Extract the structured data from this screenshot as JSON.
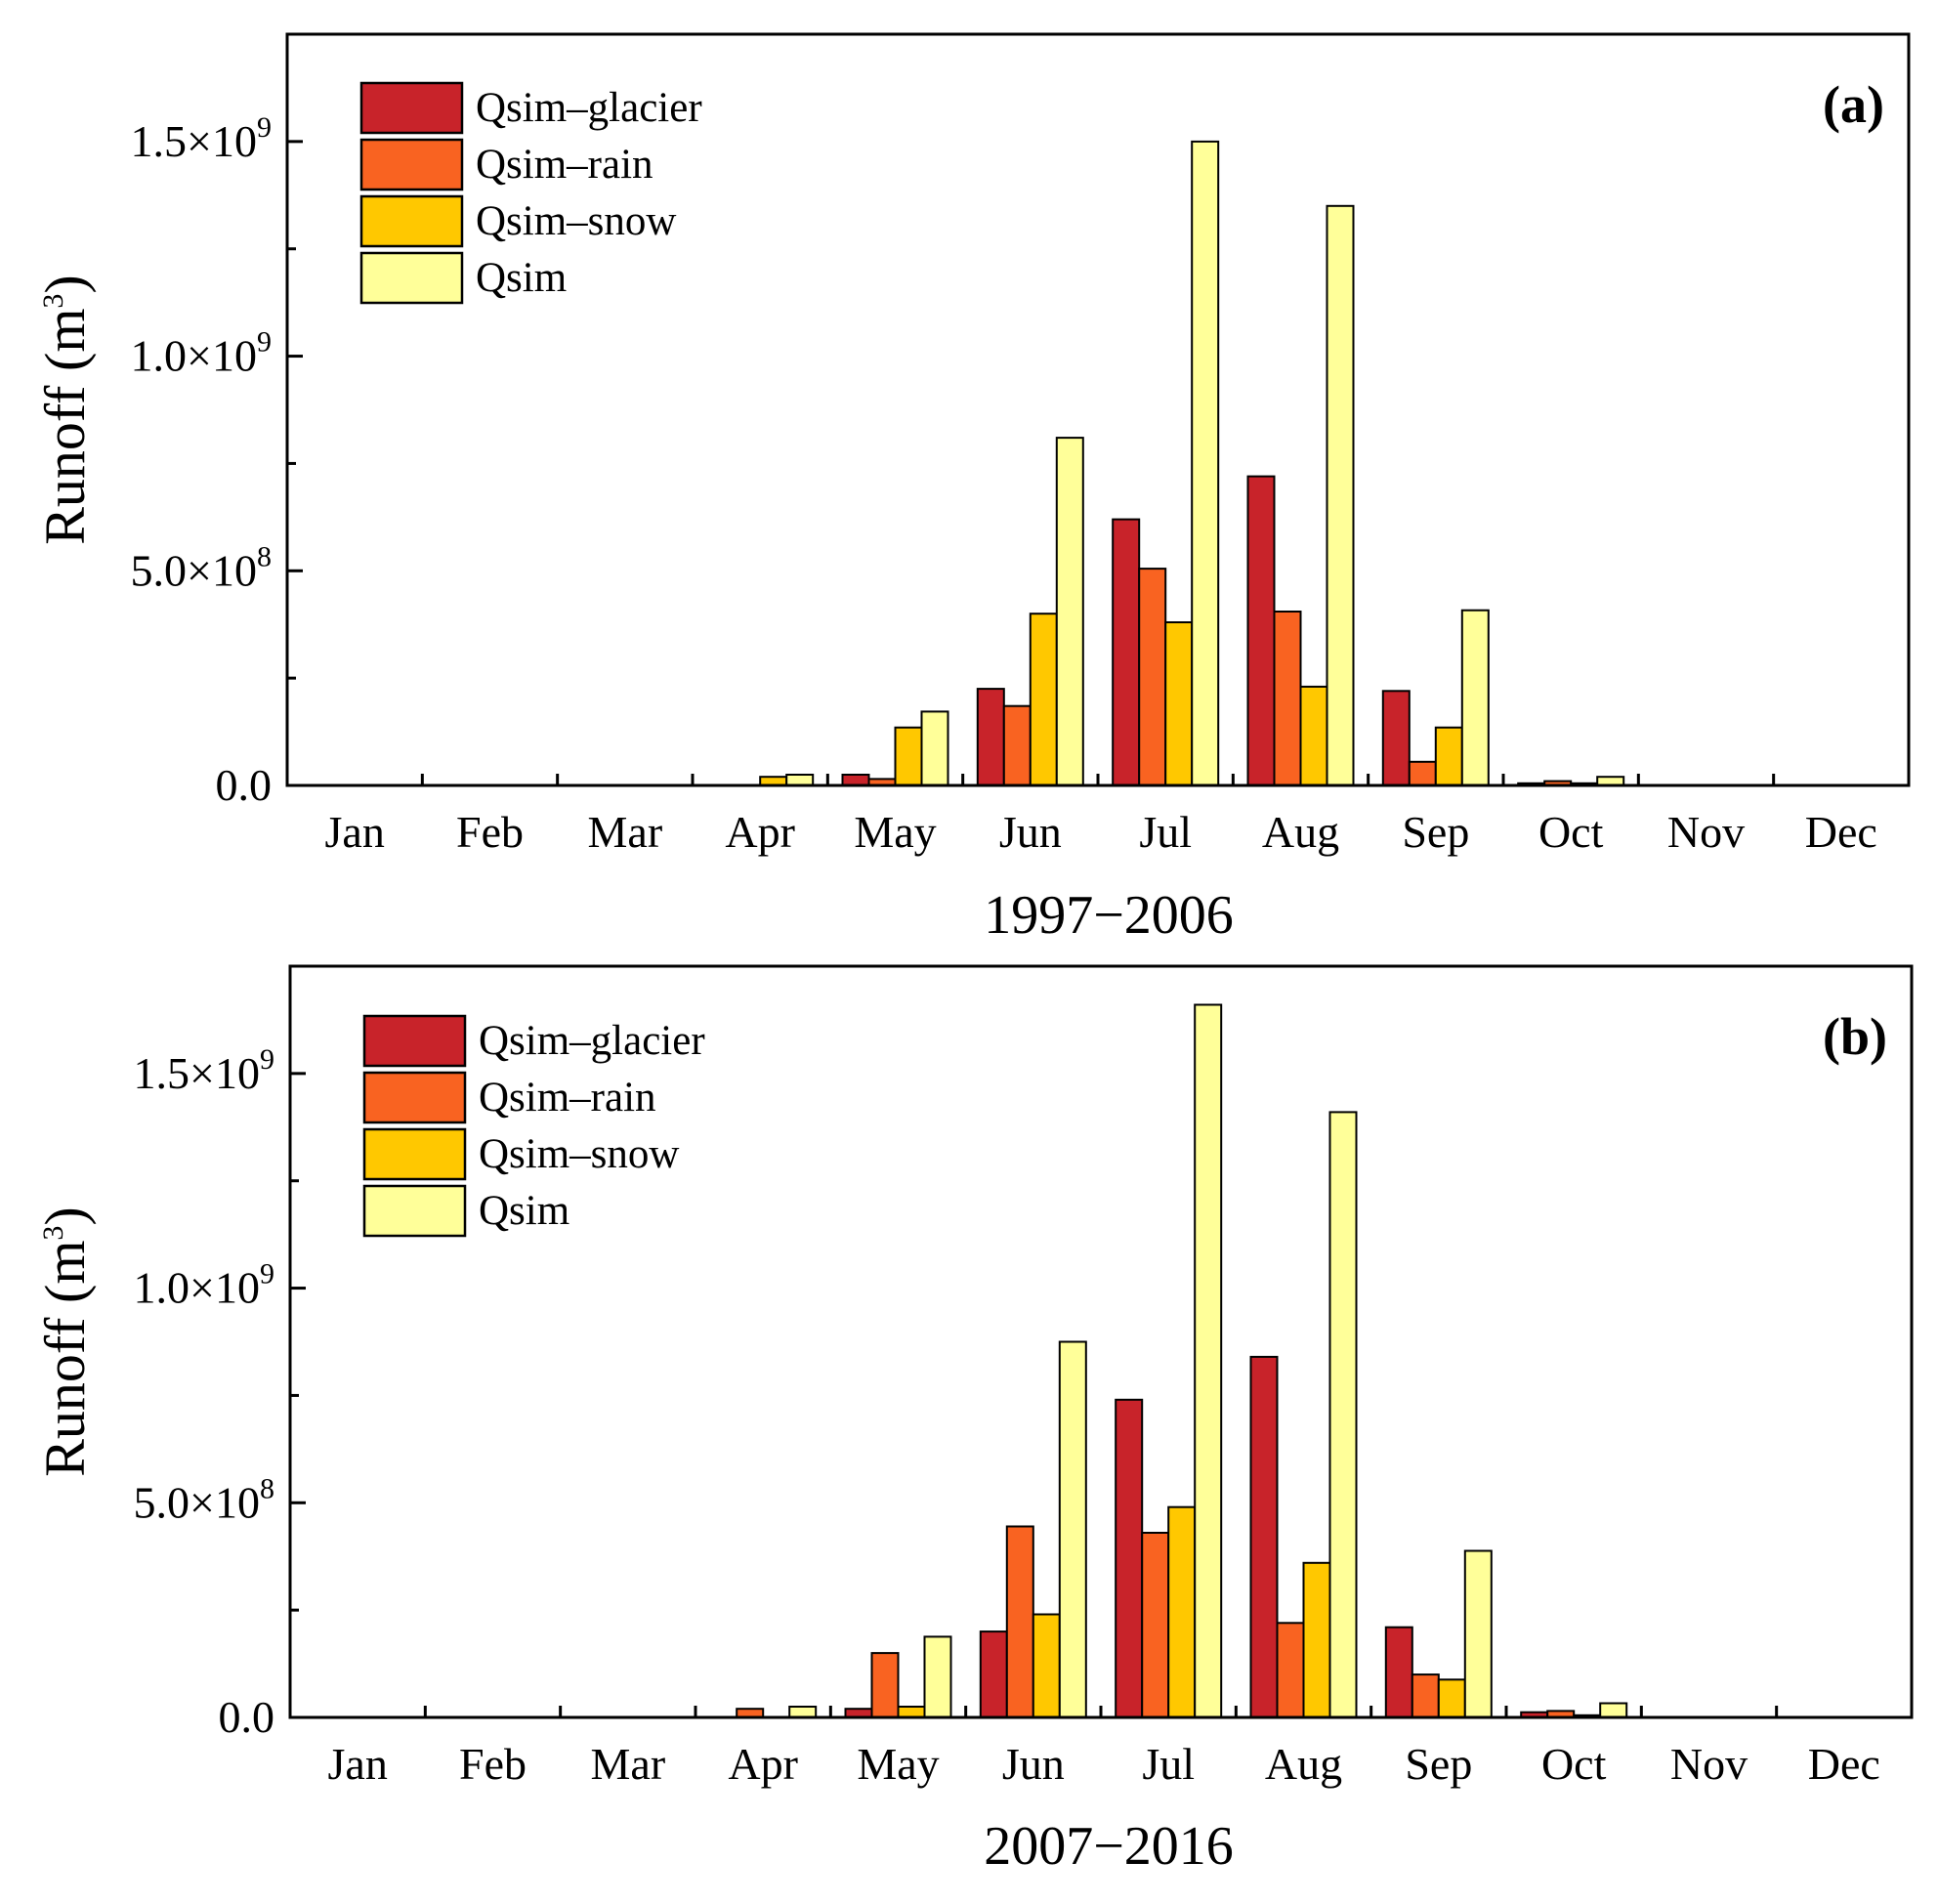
{
  "chart_data": [
    {
      "panel": "a",
      "type": "bar",
      "panel_label": "(a)",
      "xlabel": "1997−2006",
      "ylabel": "Runoff (m",
      "ylabel_sup": "3",
      "ylabel_close": ")",
      "ylim": [
        0,
        1750000000.0
      ],
      "yticks": [
        {
          "value": 0,
          "base": "0.0",
          "exp": ""
        },
        {
          "value": 500000000.0,
          "base": "5.0×10",
          "exp": "8"
        },
        {
          "value": 1000000000.0,
          "base": "1.0×10",
          "exp": "9"
        },
        {
          "value": 1500000000.0,
          "base": "1.5×10",
          "exp": "9"
        }
      ],
      "categories": [
        "Jan",
        "Feb",
        "Mar",
        "Apr",
        "May",
        "Jun",
        "Jul",
        "Aug",
        "Sep",
        "Oct",
        "Nov",
        "Dec"
      ],
      "series": [
        {
          "name": "Qsim–glacier",
          "color": "#c8232a",
          "values": [
            0,
            0,
            0,
            0,
            25000000.0,
            225000000.0,
            620000000.0,
            720000000.0,
            220000000.0,
            5000000.0,
            0,
            0
          ]
        },
        {
          "name": "Qsim–rain",
          "color": "#f96321",
          "values": [
            0,
            0,
            0,
            0,
            15000000.0,
            185000000.0,
            505000000.0,
            405000000.0,
            55000000.0,
            10000000.0,
            0,
            0
          ]
        },
        {
          "name": "Qsim–snow",
          "color": "#ffc800",
          "values": [
            0,
            0,
            0,
            20000000.0,
            135000000.0,
            400000000.0,
            380000000.0,
            230000000.0,
            135000000.0,
            5000000.0,
            0,
            0
          ]
        },
        {
          "name": "Qsim",
          "color": "#ffff99",
          "values": [
            0,
            0,
            0,
            25000000.0,
            172000000.0,
            810000000.0,
            1500000000.0,
            1350000000.0,
            408000000.0,
            20000000.0,
            0,
            0
          ]
        }
      ]
    },
    {
      "panel": "b",
      "type": "bar",
      "panel_label": "(b)",
      "xlabel": "2007−2016",
      "ylabel": "Runoff (m",
      "ylabel_sup": "3",
      "ylabel_close": ")",
      "ylim": [
        0,
        1750000000.0
      ],
      "yticks": [
        {
          "value": 0,
          "base": "0.0",
          "exp": ""
        },
        {
          "value": 500000000.0,
          "base": "5.0×10",
          "exp": "8"
        },
        {
          "value": 1000000000.0,
          "base": "1.0×10",
          "exp": "9"
        },
        {
          "value": 1500000000.0,
          "base": "1.5×10",
          "exp": "9"
        }
      ],
      "categories": [
        "Jan",
        "Feb",
        "Mar",
        "Apr",
        "May",
        "Jun",
        "Jul",
        "Aug",
        "Sep",
        "Oct",
        "Nov",
        "Dec"
      ],
      "series": [
        {
          "name": "Qsim–glacier",
          "color": "#c8232a",
          "values": [
            0,
            0,
            0,
            0,
            20000000.0,
            200000000.0,
            740000000.0,
            840000000.0,
            210000000.0,
            12000000.0,
            0,
            0
          ]
        },
        {
          "name": "Qsim–rain",
          "color": "#f96321",
          "values": [
            0,
            0,
            0,
            20000000.0,
            150000000.0,
            445000000.0,
            430000000.0,
            220000000.0,
            100000000.0,
            15000000.0,
            0,
            0
          ]
        },
        {
          "name": "Qsim–snow",
          "color": "#ffc800",
          "values": [
            0,
            0,
            0,
            0,
            25000000.0,
            240000000.0,
            490000000.0,
            360000000.0,
            88000000.0,
            5000000.0,
            0,
            0
          ]
        },
        {
          "name": "Qsim",
          "color": "#ffff99",
          "values": [
            0,
            0,
            0,
            25000000.0,
            188000000.0,
            875000000.0,
            1660000000.0,
            1410000000.0,
            388000000.0,
            33000000.0,
            0,
            0
          ]
        }
      ]
    }
  ]
}
